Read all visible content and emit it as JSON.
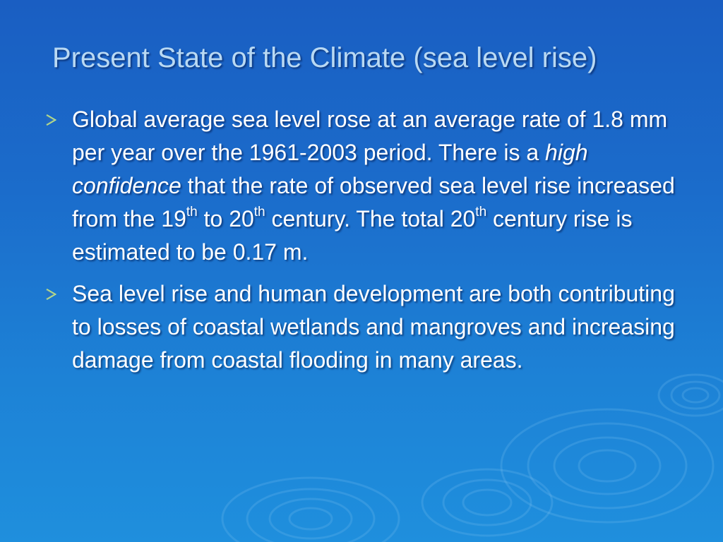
{
  "slide": {
    "title": "Present State of the Climate (sea level rise)",
    "bullets": [
      {
        "icon": "arrow-bullet-icon",
        "part1": "Global average sea level rose at an average rate of 1.8 mm per year over the 1961-2003 period. There is a ",
        "emphasis": "high confidence",
        "part2": " that the rate of observed sea level rise increased from the 19",
        "sup1": "th",
        "part3": " to 20",
        "sup2": "th",
        "part4": " century. The total 20",
        "sup3": "th",
        "part5": " century rise is estimated to be 0.17 m."
      },
      {
        "icon": "arrow-bullet-icon",
        "text": "Sea level rise and human development are both contributing to losses of coastal wetlands and mangroves and increasing damage from coastal flooding in many areas."
      }
    ]
  },
  "colors": {
    "background_top": "#1a5ec2",
    "background_bottom": "#1f8fdd",
    "title": "#b9d9f3",
    "body_text": "#ffffff",
    "bullet_arrow": "#c8e882"
  }
}
